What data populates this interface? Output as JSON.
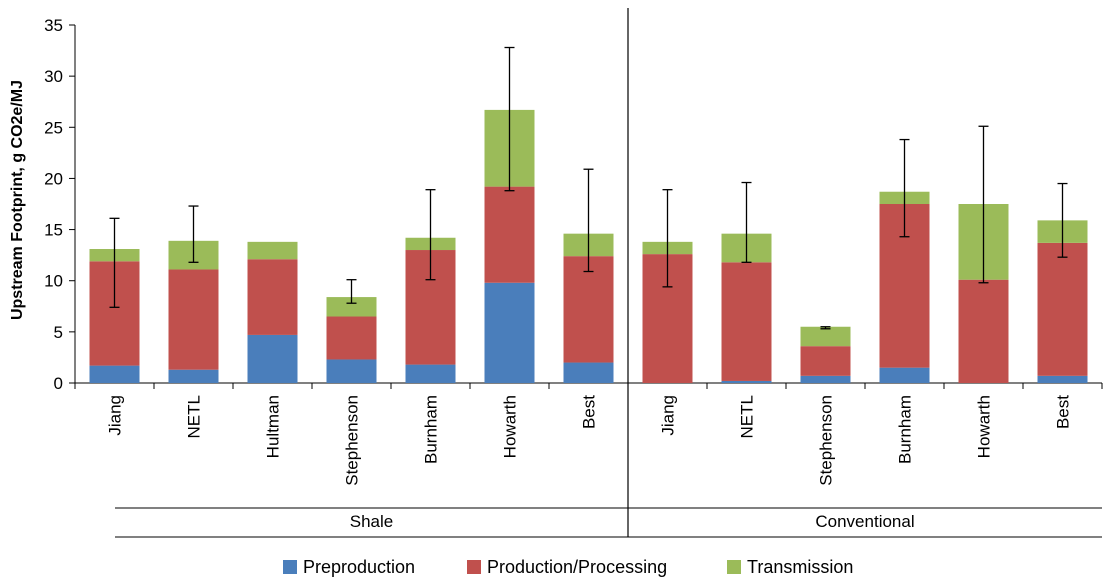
{
  "chart_data": {
    "type": "bar",
    "stacked": true,
    "title": "",
    "xlabel": "",
    "ylabel": "Upstream Footprint, g CO2e/MJ",
    "ylim": [
      0,
      35
    ],
    "yticks": [
      0,
      5,
      10,
      15,
      20,
      25,
      30,
      35
    ],
    "grid": false,
    "legend_position": "bottom",
    "groups": [
      {
        "label": "Shale",
        "categories": [
          "Jiang",
          "NETL",
          "Hultman",
          "Stephenson",
          "Burnham",
          "Howarth",
          "Best"
        ]
      },
      {
        "label": "Conventional",
        "categories": [
          "Jiang",
          "NETL",
          "Stephenson",
          "Burnham",
          "Howarth",
          "Best"
        ]
      }
    ],
    "categories": [
      "Jiang",
      "NETL",
      "Hultman",
      "Stephenson",
      "Burnham",
      "Howarth",
      "Best",
      "Jiang",
      "NETL",
      "Stephenson",
      "Burnham",
      "Howarth",
      "Best"
    ],
    "series": [
      {
        "name": "Preproduction",
        "color": "#4a7ebb",
        "values": [
          1.7,
          1.3,
          4.7,
          2.3,
          1.8,
          9.8,
          2.0,
          0.0,
          0.2,
          0.7,
          1.5,
          0.0,
          0.7
        ]
      },
      {
        "name": "Production/Processing",
        "color": "#c0504d",
        "values": [
          10.2,
          9.8,
          7.4,
          4.2,
          11.2,
          9.4,
          10.4,
          12.6,
          11.6,
          2.9,
          16.0,
          10.1,
          13.0
        ]
      },
      {
        "name": "Transmission",
        "color": "#9bbb59",
        "values": [
          1.2,
          2.8,
          1.7,
          1.9,
          1.2,
          7.5,
          2.2,
          1.2,
          2.8,
          1.9,
          1.2,
          7.4,
          2.2
        ]
      }
    ],
    "error_bars": [
      {
        "low": 7.4,
        "high": 16.1
      },
      {
        "low": 11.8,
        "high": 17.3
      },
      null,
      {
        "low": 7.8,
        "high": 10.1
      },
      {
        "low": 10.1,
        "high": 18.9
      },
      {
        "low": 18.8,
        "high": 32.8
      },
      {
        "low": 10.9,
        "high": 20.9
      },
      {
        "low": 9.4,
        "high": 18.9
      },
      {
        "low": 11.8,
        "high": 19.6
      },
      {
        "low": 5.3,
        "high": 5.5
      },
      {
        "low": 14.3,
        "high": 23.8
      },
      {
        "low": 9.8,
        "high": 25.1
      },
      {
        "low": 12.3,
        "high": 19.5
      }
    ]
  }
}
